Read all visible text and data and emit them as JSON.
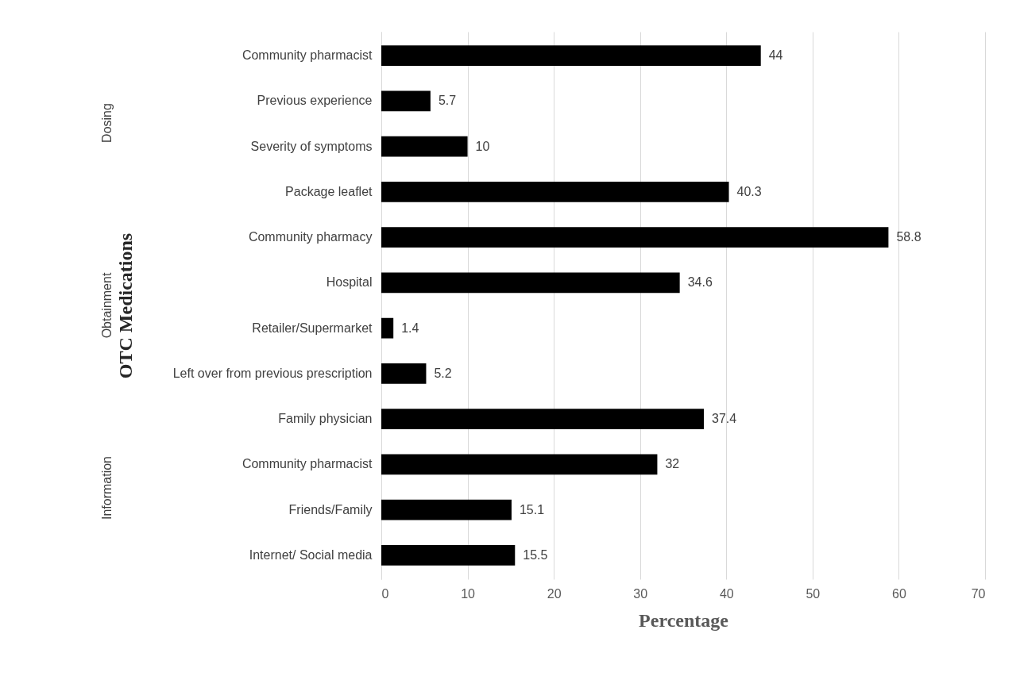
{
  "chart_data": {
    "type": "bar",
    "orientation": "horizontal",
    "xlabel": "Percentage",
    "ylabel": "OTC Medications",
    "categories": [
      "Community pharmacist",
      "Previous experience",
      "Severity of symptoms",
      "Package  leaflet",
      "Community pharmacy",
      "Hospital",
      "Retailer/Supermarket",
      "Left over from previous prescription",
      "Family physician",
      "Community pharmacist",
      "Friends/Family",
      "Internet/ Social media"
    ],
    "values": [
      44,
      5.7,
      10,
      40.3,
      58.8,
      34.6,
      1.4,
      5.2,
      37.4,
      32,
      15.1,
      15.5
    ],
    "color": "#000000",
    "data_labels": true,
    "xlim": [
      0,
      70
    ],
    "xticks": [
      0,
      10,
      20,
      30,
      40,
      50,
      60,
      70
    ],
    "grid": "x",
    "annotations": [
      "Dosing",
      "Obtainment",
      "Information"
    ]
  }
}
